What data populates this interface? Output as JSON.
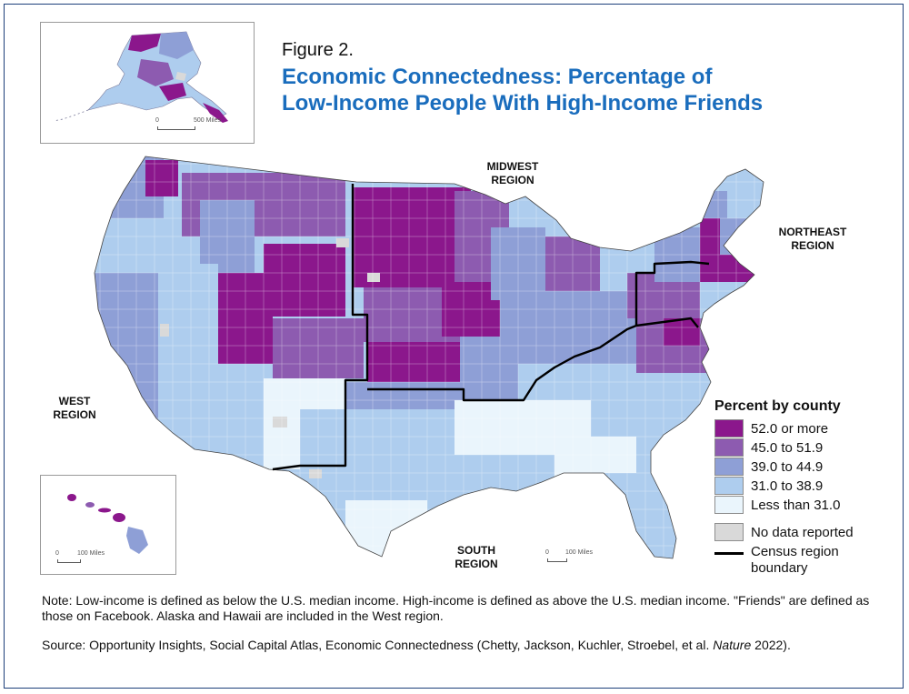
{
  "figure_label": "Figure 2.",
  "title_line1": "Economic Connectedness: Percentage of",
  "title_line2": "Low-Income People With High-Income Friends",
  "regions": {
    "midwest_1": "MIDWEST",
    "midwest_2": "REGION",
    "northeast_1": "NORTHEAST",
    "northeast_2": "REGION",
    "west_1": "WEST",
    "west_2": "REGION",
    "south_1": "SOUTH",
    "south_2": "REGION"
  },
  "legend": {
    "title": "Percent by county",
    "bins": [
      {
        "label": "52.0 or more",
        "color": "#8b178c"
      },
      {
        "label": "45.0 to 51.9",
        "color": "#8d5bb0"
      },
      {
        "label": "39.0 to 44.9",
        "color": "#8e9fd6"
      },
      {
        "label": "31.0 to 38.9",
        "color": "#aecdee"
      },
      {
        "label": "Less than 31.0",
        "color": "#eaf5fc"
      }
    ],
    "no_data": {
      "label": "No data reported",
      "color": "#d9d9d9"
    },
    "boundary_line1": "Census region",
    "boundary_line2": "boundary"
  },
  "scales": {
    "alaska": {
      "zero": "0",
      "label": "500 Miles"
    },
    "hawaii": {
      "zero": "0",
      "label": "100 Miles"
    },
    "mainland": {
      "zero": "0",
      "label": "100 Miles"
    }
  },
  "note": "Note: Low-income is defined as below the U.S. median income. High-income is defined as above the U.S. median income. \"Friends\" are defined as those on Facebook. Alaska and Hawaii are included in the West region.",
  "source_prefix": "Source: Opportunity Insights, Social Capital Atlas, Economic Connectedness (Chetty, Jackson, Kuchler, Stroebel, et al. ",
  "source_journal": "Nature",
  "source_suffix": " 2022).",
  "colors": {
    "title": "#1a6dbd",
    "frame": "#1d3f7a",
    "boundary": "#000000"
  }
}
